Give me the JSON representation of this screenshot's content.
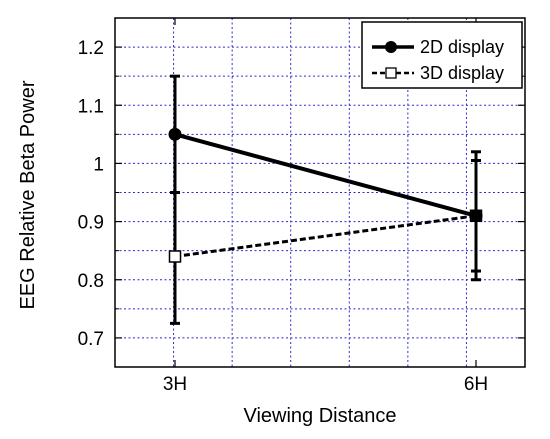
{
  "chart_data": {
    "type": "line",
    "title": "",
    "xlabel": "Viewing Distance",
    "ylabel": "EEG Relative Beta Power",
    "categories": [
      "3H",
      "6H"
    ],
    "ylim": [
      0.65,
      1.25
    ],
    "yticks": [
      0.7,
      0.8,
      0.9,
      1,
      1.1,
      1.2
    ],
    "ytick_labels": [
      "0.7",
      "0.8",
      "0.9",
      "1",
      "1.1",
      "1.2"
    ],
    "grid": true,
    "legend_position": "top-right",
    "series": [
      {
        "name": "2D display",
        "values": [
          1.05,
          0.91
        ],
        "error_low": [
          0.95,
          0.815
        ],
        "error_high": [
          1.15,
          1.02
        ],
        "line_style": "solid",
        "marker": "filled-circle",
        "color": "#000000"
      },
      {
        "name": "3D display",
        "values": [
          0.84,
          0.91
        ],
        "error_low": [
          0.725,
          0.8
        ],
        "error_high": [
          0.95,
          1.005
        ],
        "line_style": "dashed",
        "marker": "open-square",
        "color": "#000000"
      }
    ]
  }
}
